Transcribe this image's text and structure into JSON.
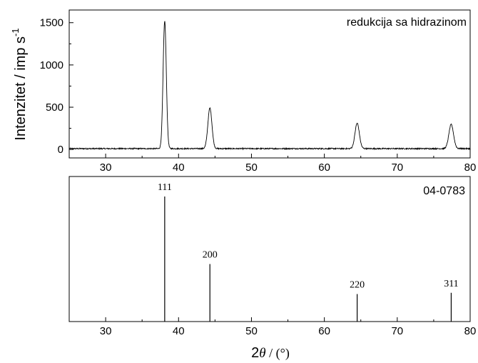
{
  "chart_data": [
    {
      "type": "line",
      "annotation": "redukcija sa hidrazinom",
      "ylabel": "Intenzitet / imp s",
      "ylabel_superscript": "-1",
      "xlim": [
        25,
        80
      ],
      "ylim": [
        -100,
        1650
      ],
      "xticks": [
        30,
        40,
        50,
        60,
        70,
        80
      ],
      "yticks": [
        0,
        500,
        1000,
        1500
      ],
      "baseline": 10,
      "peaks": [
        {
          "x": 38.1,
          "height": 1510,
          "width": 0.22
        },
        {
          "x": 44.3,
          "height": 480,
          "width": 0.28
        },
        {
          "x": 64.5,
          "height": 300,
          "width": 0.3
        },
        {
          "x": 77.4,
          "height": 285,
          "width": 0.32
        }
      ],
      "line_color": "#000000"
    },
    {
      "type": "bar",
      "annotation": "04-0783",
      "xlabel_prefix": "2",
      "xlabel_symbol": "θ",
      "xlabel_suffix": " / (°)",
      "xlim": [
        25,
        80
      ],
      "xticks": [
        30,
        40,
        50,
        60,
        70,
        80
      ],
      "ylim": [
        0,
        100
      ],
      "reflections": [
        {
          "label": "111",
          "x": 38.1,
          "value": 100
        },
        {
          "label": "200",
          "x": 44.3,
          "value": 46
        },
        {
          "label": "220",
          "x": 64.5,
          "value": 22
        },
        {
          "label": "311",
          "x": 77.4,
          "value": 23
        }
      ]
    }
  ]
}
